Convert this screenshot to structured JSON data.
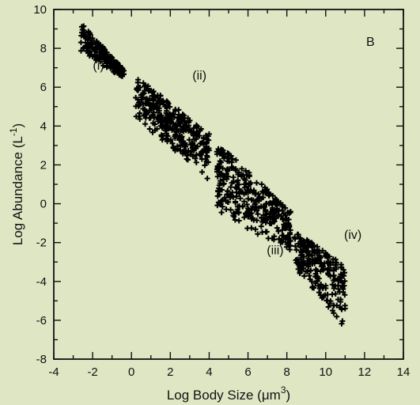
{
  "chart_data": {
    "type": "scatter",
    "panel_label": "B",
    "xlabel": "Log Body Size (μm³)",
    "xlabel_main": "Log Body Size (",
    "xlabel_unit": "μm",
    "xlabel_sup": "3",
    "xlabel_close": ")",
    "ylabel": "Log Abundance (L⁻¹)",
    "ylabel_main": "Log Abundance (L",
    "ylabel_sup": "-1",
    "ylabel_close": ")",
    "xlim": [
      -4,
      14
    ],
    "ylim": [
      -8,
      10
    ],
    "x_ticks": [
      "-4",
      "-2",
      "0",
      "2",
      "4",
      "6",
      "8",
      "10",
      "12",
      "14"
    ],
    "y_ticks": [
      "10",
      "8",
      "6",
      "4",
      "2",
      "0",
      "-2",
      "-4",
      "-6",
      "-8"
    ],
    "grid": false,
    "marker": "plus",
    "groups": [
      {
        "name": "(i)",
        "x": [
          -2.6,
          -0.4
        ],
        "y_top": [
          9.3,
          6.9
        ],
        "y_bottom": [
          7.7,
          6.5
        ]
      },
      {
        "name": "(ii)",
        "x": [
          0.2,
          4.0
        ],
        "y_top": [
          6.6,
          3.6
        ],
        "y_bottom": [
          4.4,
          1.2
        ]
      },
      {
        "name": "(iii)",
        "x": [
          4.4,
          8.2
        ],
        "y_top": [
          3.2,
          -0.4
        ],
        "y_bottom": [
          -0.6,
          -2.5
        ]
      },
      {
        "name": "(iv)",
        "x": [
          8.4,
          11.0
        ],
        "y_top": [
          -1.4,
          -3.2
        ],
        "y_bottom": [
          -3.4,
          -6.4
        ]
      }
    ],
    "annotations": [
      {
        "text": "(i)",
        "x": -1.7,
        "y": 6.9
      },
      {
        "text": "(ii)",
        "x": 3.5,
        "y": 6.4
      },
      {
        "text": "(iii)",
        "x": 7.4,
        "y": -2.6
      },
      {
        "text": "(iv)",
        "x": 11.4,
        "y": -1.8
      }
    ]
  }
}
